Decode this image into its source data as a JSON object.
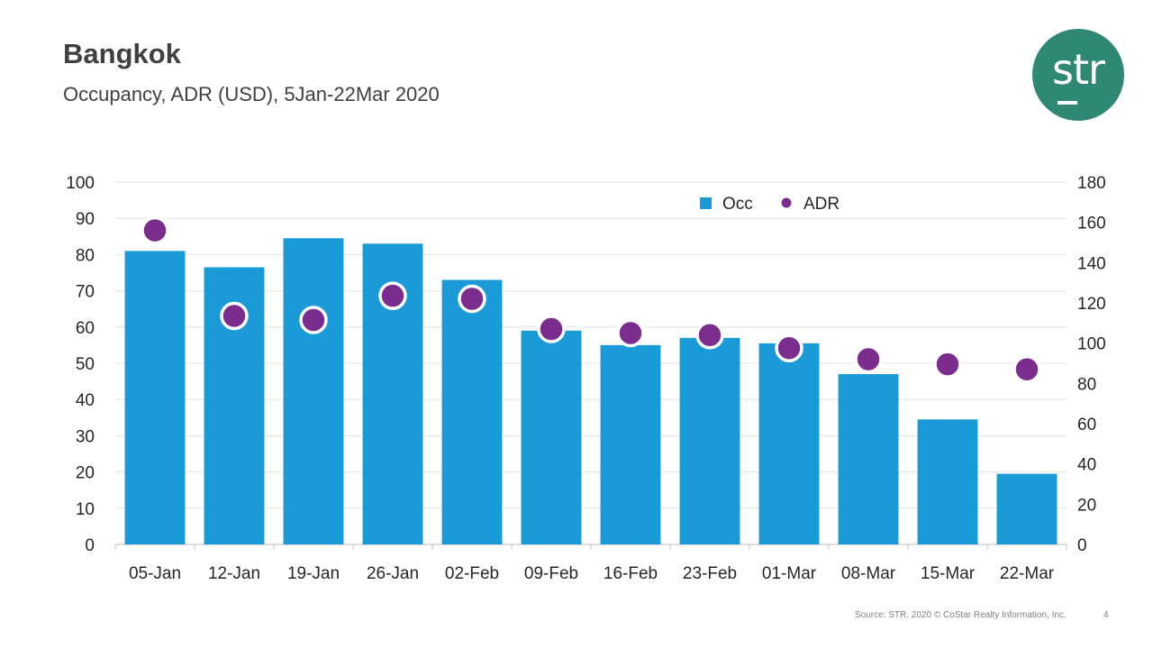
{
  "header": {
    "title": "Bangkok",
    "subtitle": "Occupancy, ADR (USD), 5Jan-22Mar 2020"
  },
  "logo": {
    "text": "str",
    "color": "#2e8873"
  },
  "chart_data": {
    "type": "bar",
    "categories": [
      "05-Jan",
      "12-Jan",
      "19-Jan",
      "26-Jan",
      "02-Feb",
      "09-Feb",
      "16-Feb",
      "23-Feb",
      "01-Mar",
      "08-Mar",
      "15-Mar",
      "22-Mar"
    ],
    "series": [
      {
        "name": "Occ",
        "type": "bar",
        "axis": "left",
        "color": "#1a9ad6",
        "values": [
          81,
          76.5,
          84.5,
          83,
          73,
          59,
          55,
          57,
          55.5,
          47,
          34.5,
          19.5
        ]
      },
      {
        "name": "ADR",
        "type": "scatter",
        "axis": "right",
        "color": "#7b2d8e",
        "values": [
          156,
          113.5,
          111.5,
          123.5,
          122,
          107,
          105,
          104,
          97.5,
          92,
          89.5,
          87
        ]
      }
    ],
    "y_left": {
      "min": 0,
      "max": 100,
      "ticks": [
        0,
        10,
        20,
        30,
        40,
        50,
        60,
        70,
        80,
        90,
        100
      ]
    },
    "y_right": {
      "min": 0,
      "max": 180,
      "ticks": [
        0,
        20,
        40,
        60,
        80,
        100,
        120,
        140,
        160,
        180
      ]
    },
    "grid": true,
    "legend": "top-right"
  },
  "footer": {
    "source": "Source: STR. 2020 © CoStar Realty Information, Inc.",
    "page": "4"
  }
}
